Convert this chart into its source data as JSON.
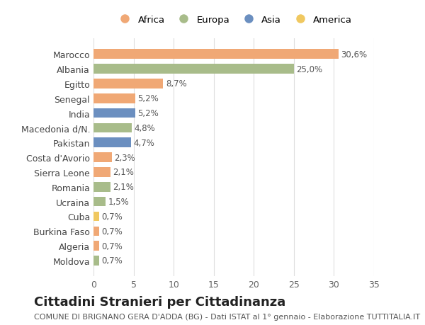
{
  "countries": [
    "Marocco",
    "Albania",
    "Egitto",
    "Senegal",
    "India",
    "Macedonia d/N.",
    "Pakistan",
    "Costa d'Avorio",
    "Sierra Leone",
    "Romania",
    "Ucraina",
    "Cuba",
    "Burkina Faso",
    "Algeria",
    "Moldova"
  ],
  "values": [
    30.6,
    25.0,
    8.7,
    5.2,
    5.2,
    4.8,
    4.7,
    2.3,
    2.1,
    2.1,
    1.5,
    0.7,
    0.7,
    0.7,
    0.7
  ],
  "labels": [
    "30,6%",
    "25,0%",
    "8,7%",
    "5,2%",
    "5,2%",
    "4,8%",
    "4,7%",
    "2,3%",
    "2,1%",
    "2,1%",
    "1,5%",
    "0,7%",
    "0,7%",
    "0,7%",
    "0,7%"
  ],
  "continents": [
    "Africa",
    "Europa",
    "Africa",
    "Africa",
    "Asia",
    "Europa",
    "Asia",
    "Africa",
    "Africa",
    "Europa",
    "Europa",
    "America",
    "Africa",
    "Africa",
    "Europa"
  ],
  "continent_colors": {
    "Africa": "#F0A875",
    "Europa": "#A8BC8A",
    "Asia": "#6B8FC0",
    "America": "#F0C860"
  },
  "legend_order": [
    "Africa",
    "Europa",
    "Asia",
    "America"
  ],
  "title": "Cittadini Stranieri per Cittadinanza",
  "subtitle": "COMUNE DI BRIGNANO GERA D'ADDA (BG) - Dati ISTAT al 1° gennaio - Elaborazione TUTTITALIA.IT",
  "xlim": [
    0,
    35
  ],
  "xticks": [
    0,
    5,
    10,
    15,
    20,
    25,
    30,
    35
  ],
  "background_color": "#ffffff",
  "grid_color": "#dddddd",
  "title_fontsize": 13,
  "subtitle_fontsize": 8,
  "label_fontsize": 8.5,
  "tick_fontsize": 9
}
